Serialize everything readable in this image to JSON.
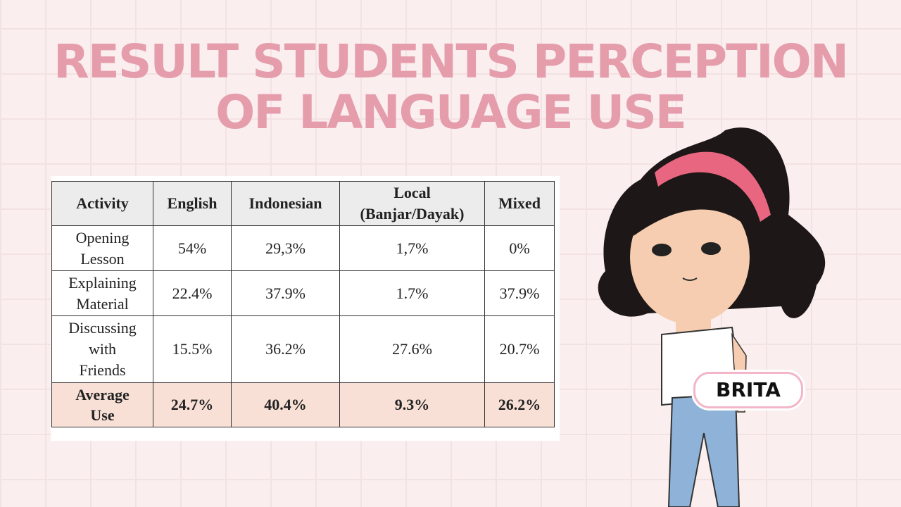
{
  "title": {
    "line1": "RESULT STUDENTS PERCEPTION",
    "line2": "OF LANGUAGE USE"
  },
  "table": {
    "headers": [
      "Activity",
      "English",
      "Indonesian",
      "Local",
      "(Banjar/Dayak)",
      "Mixed"
    ],
    "rows": [
      {
        "activity": [
          "Opening",
          "Lesson"
        ],
        "values": [
          "54%",
          "29,3%",
          "1,7%",
          "0%"
        ]
      },
      {
        "activity": [
          "Explaining",
          "Material"
        ],
        "values": [
          "22.4%",
          "37.9%",
          "1.7%",
          "37.9%"
        ]
      },
      {
        "activity": [
          "Discussing",
          "with",
          "Friends"
        ],
        "values": [
          "15.5%",
          "36.2%",
          "27.6%",
          "20.7%"
        ]
      }
    ],
    "average": {
      "activity": [
        "Average",
        "Use"
      ],
      "values": [
        "24.7%",
        "40.4%",
        "9.3%",
        "26.2%"
      ]
    }
  },
  "character": {
    "name": "BRITA"
  },
  "colors": {
    "title": "#e59dac",
    "average_row": "#f8e0d6",
    "header_row": "#ececec"
  }
}
